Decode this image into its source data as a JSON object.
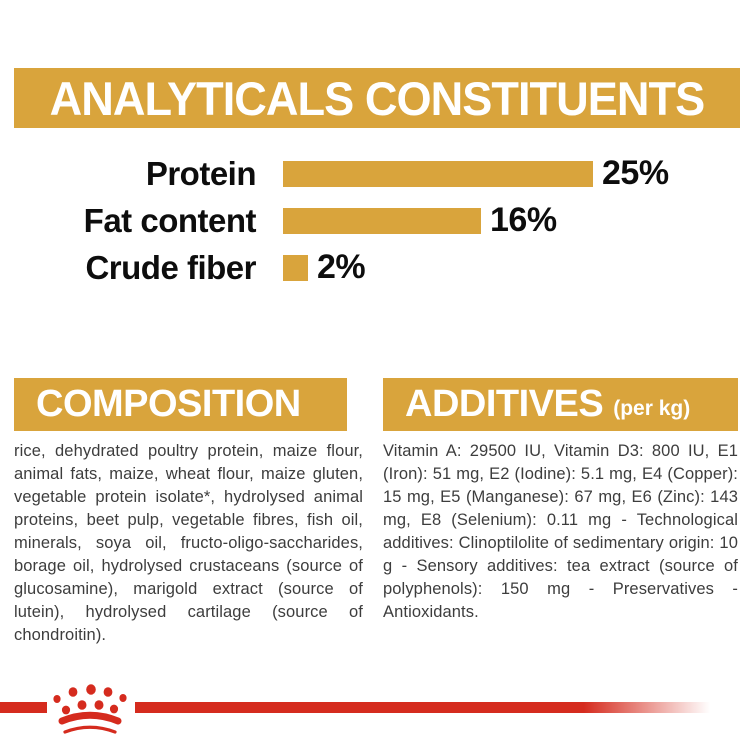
{
  "header": {
    "title": "ANALYTICALS CONSTITUENTS"
  },
  "chart_data": {
    "type": "bar",
    "orientation": "horizontal",
    "categories": [
      "Protein",
      "Fat content",
      "Crude fiber"
    ],
    "values": [
      25,
      16,
      2
    ],
    "value_labels": [
      "25%",
      "16%",
      "2%"
    ],
    "xlim": [
      0,
      25
    ],
    "bar_color": "#D9A43C",
    "grid": false,
    "legend": false
  },
  "composition": {
    "title": "COMPOSITION",
    "text": "rice, dehydrated poultry protein, maize flour, animal fats, maize, wheat flour, maize gluten, vegetable protein isolate*, hydrolysed animal proteins, beet pulp, vegetable fibres, fish oil, minerals, soya oil, fructo-oligo-saccharides, borage oil, hydrolysed crustaceans (source of glucosamine), marigold extract (source of lutein), hydrolysed cartilage (source of chondroitin)."
  },
  "additives": {
    "title": "ADDITIVES",
    "unit": "(per kg)",
    "text": "Vitamin A: 29500 IU, Vitamin D3: 800 IU, E1 (Iron): 51 mg, E2 (Iodine): 5.1 mg, E4 (Copper): 15 mg, E5 (Manganese): 67 mg, E6 (Zinc): 143 mg, E8 (Selenium): 0.11 mg - Technological additives: Clinoptilolite of sedimentary origin: 10 g - Sensory additives: tea extract (source of polyphenols): 150 mg - Preservatives - Antioxidants."
  },
  "footer": {
    "logo": "royal-canin-crown-logo"
  },
  "colors": {
    "gold": "#D9A43C",
    "red": "#D52B1E",
    "text_dark": "#3D3D3D",
    "text_black": "#0D0D0D",
    "white": "#FFFFFF"
  }
}
